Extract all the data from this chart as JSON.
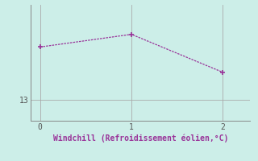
{
  "x": [
    0,
    1,
    2
  ],
  "y": [
    15.5,
    16.1,
    14.3
  ],
  "line_color": "#993399",
  "marker_color": "#993399",
  "bg_color": "#cceee8",
  "grid_color": "#aaaaaa",
  "tick_color": "#555555",
  "xlabel": "Windchill (Refroidissement éolien,°C)",
  "xlabel_color": "#993399",
  "ylabel_tick": "13",
  "ytick_value": 13,
  "xticks": [
    0,
    1,
    2
  ],
  "xlim": [
    -0.1,
    2.3
  ],
  "ylim": [
    12.0,
    17.5
  ],
  "spine_color": "#888888"
}
